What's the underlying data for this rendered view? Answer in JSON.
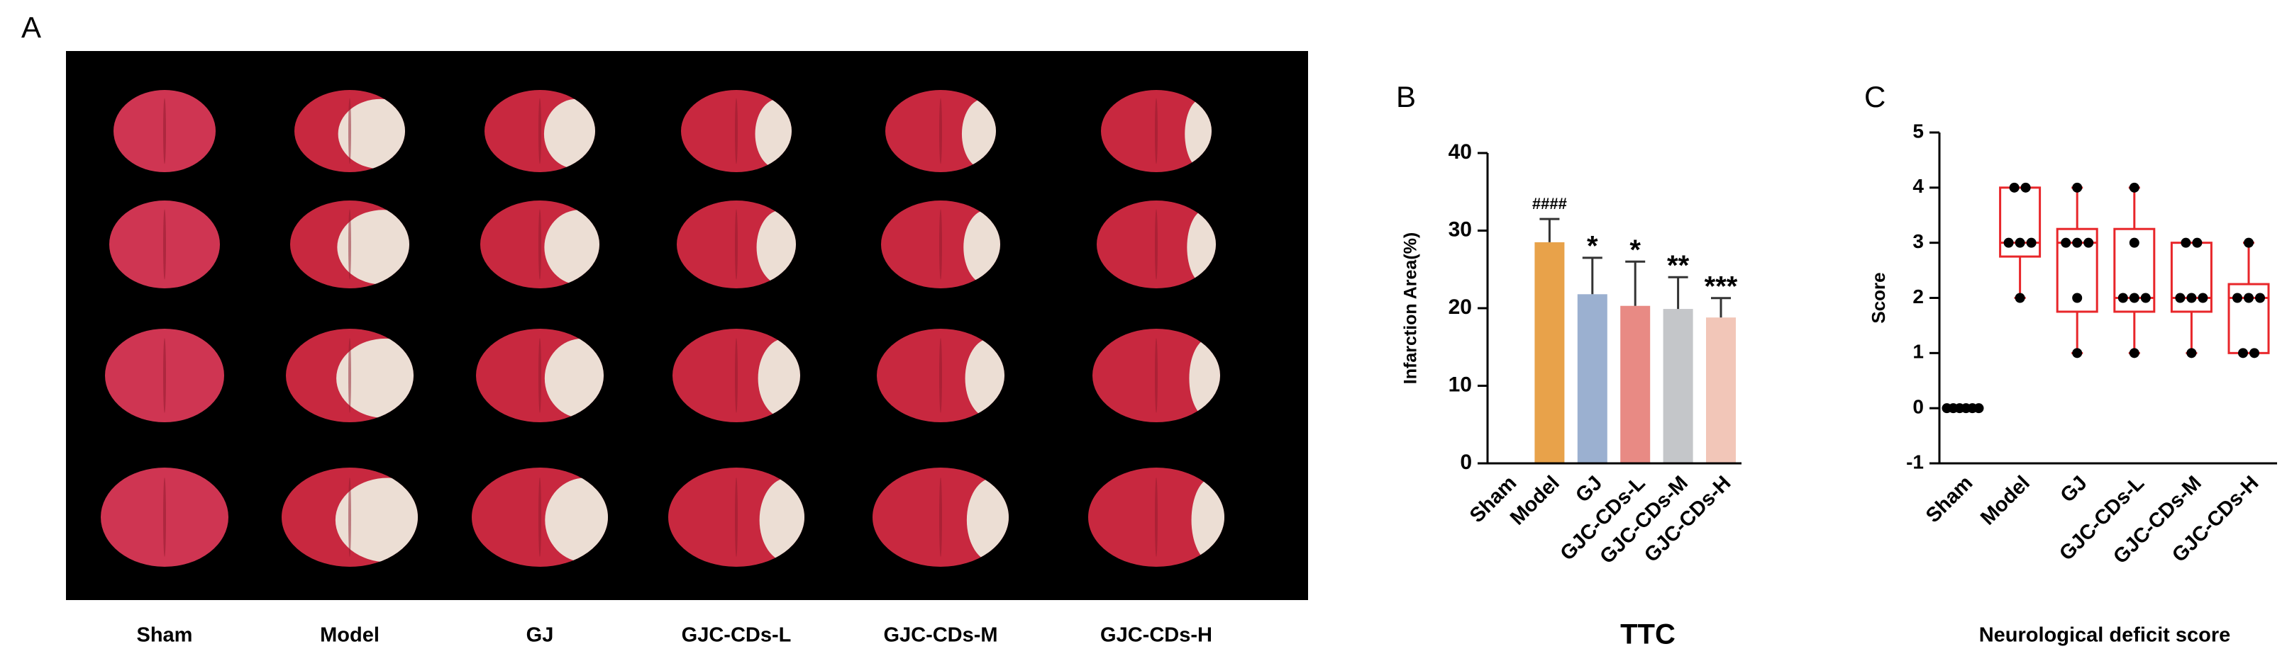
{
  "figure_a": {
    "panel_label": "A",
    "labels": [
      "Sham",
      "Model",
      "GJ",
      "GJC-CDs-L",
      "GJC-CDs-M",
      "GJC-CDs-H"
    ]
  },
  "chart_data": [
    {
      "type": "bar",
      "panel_label": "B",
      "title": "TTC",
      "y_label": "Infarction Area(%)",
      "categories": [
        "Sham",
        "Model",
        "GJ",
        "GJC-CDs-L",
        "GJC-CDs-M",
        "GJC-CDs-H"
      ],
      "values": [
        0,
        28.5,
        21.8,
        20.3,
        19.9,
        18.8
      ],
      "errors": [
        null,
        3,
        4.7,
        5.7,
        4.1,
        2.5
      ],
      "colors": [
        "#e8a24a",
        "#e8a24a",
        "#9bb0d0",
        "#e88a84",
        "#c4c6c9",
        "#f2c6b8"
      ],
      "annotations": [
        null,
        "####",
        "*",
        "*",
        "**",
        "***"
      ],
      "ylim": [
        0,
        40
      ],
      "yticks": [
        0,
        10,
        20,
        30,
        40
      ]
    },
    {
      "type": "box",
      "panel_label": "C",
      "title": "Neurological deficit score",
      "y_label": "Score",
      "categories": [
        "Sham",
        "Model",
        "GJ",
        "GJC-CDs-L",
        "GJC-CDs-M",
        "GJC-CDs-H"
      ],
      "points": [
        [
          0,
          0,
          0,
          0,
          0,
          0
        ],
        [
          4,
          4,
          3,
          3,
          3,
          2
        ],
        [
          4,
          3,
          3,
          3,
          2,
          1
        ],
        [
          4,
          3,
          2,
          2,
          2,
          1
        ],
        [
          3,
          3,
          2,
          2,
          2,
          1
        ],
        [
          3,
          2,
          2,
          2,
          1,
          1
        ]
      ],
      "box": [
        [
          0,
          0,
          0,
          0,
          0
        ],
        [
          2,
          2.75,
          3,
          4,
          4
        ],
        [
          1,
          1.75,
          3,
          3.25,
          4
        ],
        [
          1,
          1.75,
          2,
          3.25,
          4
        ],
        [
          1,
          1.75,
          2,
          3,
          3
        ],
        [
          1,
          1,
          2,
          2.25,
          3
        ]
      ],
      "color": "#e8262a",
      "point_color": "#000000",
      "ylim": [
        -1,
        5
      ],
      "yticks": [
        -1,
        0,
        1,
        2,
        3,
        4,
        5
      ]
    }
  ]
}
